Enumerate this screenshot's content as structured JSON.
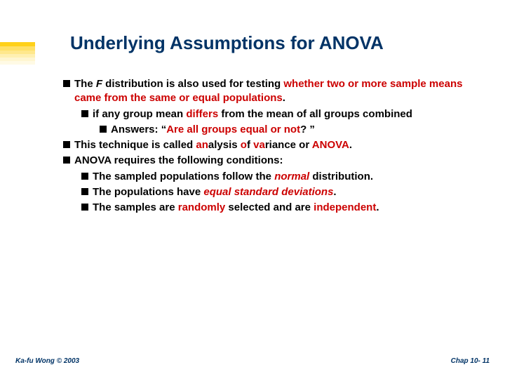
{
  "colors": {
    "title": "#003366",
    "body": "#000000",
    "accent": "#cc0000",
    "footer": "#003366",
    "background": "#ffffff",
    "stripes": [
      {
        "color": "rgba(255,204,0,0.9)",
        "h": 6
      },
      {
        "color": "rgba(255,204,0,0.6)",
        "h": 6
      },
      {
        "color": "rgba(255,204,0,0.45)",
        "h": 5
      },
      {
        "color": "rgba(255,204,0,0.3)",
        "h": 5
      },
      {
        "color": "rgba(255,204,0,0.18)",
        "h": 5
      },
      {
        "color": "rgba(255,204,0,0.1)",
        "h": 5
      }
    ]
  },
  "typography": {
    "title_fontsize": 26,
    "body_fontsize": 15,
    "footer_fontsize": 10,
    "font_family": "Verdana",
    "body_weight": "bold"
  },
  "title": "Underlying Assumptions for ANOVA",
  "b1": {
    "pre": "The ",
    "em": "F",
    "mid": " distribution is also used for testing ",
    "red": "whether two or more sample means came from the same or equal populations",
    "post": "."
  },
  "b1a": {
    "pre": "if any group mean ",
    "red": "differs",
    "post": " from the mean of all groups combined"
  },
  "b1a1": {
    "pre": "Answers:  “",
    "red": "Are all groups equal or not",
    "post": "? ”"
  },
  "b2": {
    "pre": "This technique is called ",
    "red1": "an",
    "mid1": "alysis ",
    "red2": "o",
    "mid2": "f ",
    "red3": "va",
    "mid3": "riance or ",
    "red4": "ANOVA",
    "post": "."
  },
  "b3": {
    "text": "ANOVA requires the following conditions:"
  },
  "b3a": {
    "pre": "The sampled populations follow the ",
    "em": "normal",
    "post": " distribution."
  },
  "b3b": {
    "pre": "The populations have ",
    "em": "equal standard deviations",
    "post": "."
  },
  "b3c": {
    "pre": "The samples are ",
    "red1": "randomly",
    "mid": " selected and are ",
    "red2": "independent",
    "post": "."
  },
  "footer": {
    "left": "Ka-fu Wong © 2003",
    "right": "Chap 10- 11"
  }
}
